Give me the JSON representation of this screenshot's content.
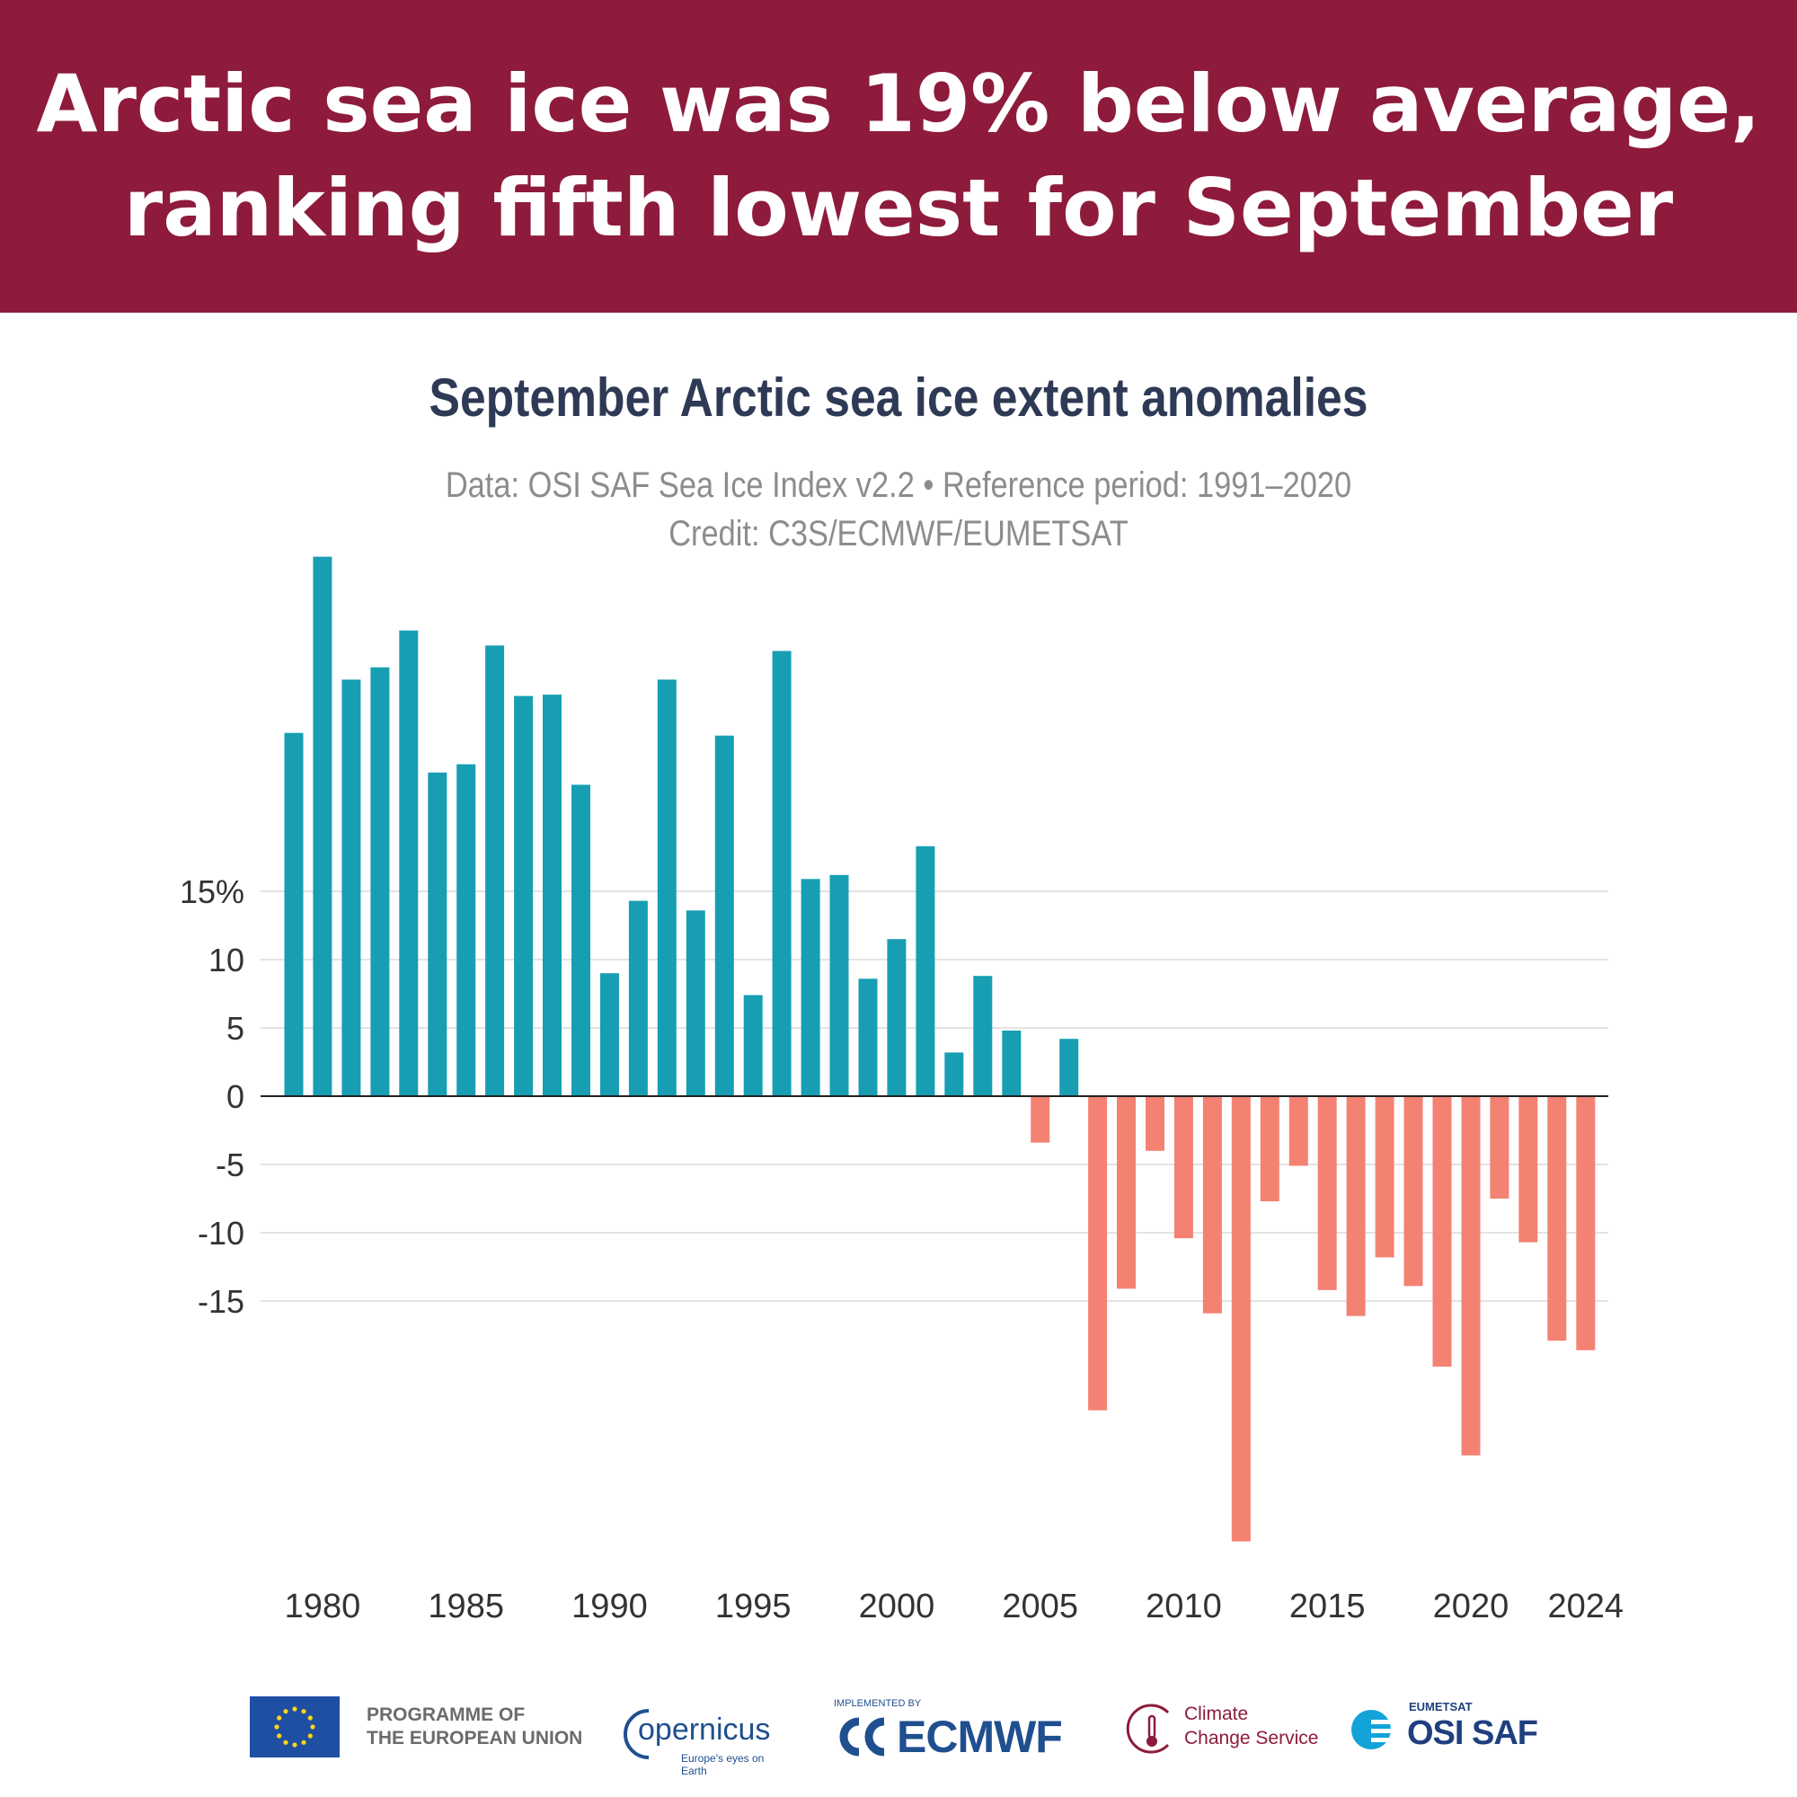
{
  "header": {
    "line1": "Arctic sea ice was 19% below average,",
    "line2": "ranking fifth lowest for September"
  },
  "chart_data": {
    "type": "bar",
    "title": "September Arctic sea ice extent anomalies",
    "subtitle": "Data: OSI SAF Sea Ice Index v2.2 • Reference period: 1991–2020",
    "credit": "Credit: C3S/ECMWF/EUMETSAT",
    "x": [
      1979,
      1980,
      1981,
      1982,
      1983,
      1984,
      1985,
      1986,
      1987,
      1988,
      1989,
      1990,
      1991,
      1992,
      1993,
      1994,
      1995,
      1996,
      1997,
      1998,
      1999,
      2000,
      2001,
      2002,
      2003,
      2004,
      2005,
      2006,
      2007,
      2008,
      2009,
      2010,
      2011,
      2012,
      2013,
      2014,
      2015,
      2016,
      2017,
      2018,
      2019,
      2020,
      2021,
      2022,
      2023,
      2024
    ],
    "values": [
      26.6,
      39.5,
      30.5,
      31.4,
      34.1,
      23.7,
      24.3,
      33.0,
      29.3,
      29.4,
      22.8,
      9.0,
      14.3,
      30.5,
      13.6,
      26.4,
      7.4,
      32.6,
      15.9,
      16.2,
      8.6,
      11.5,
      18.3,
      3.2,
      8.8,
      4.8,
      -3.4,
      4.2,
      -23.0,
      -14.1,
      -4.0,
      -10.4,
      -15.9,
      -32.6,
      -7.7,
      -5.1,
      -14.2,
      -16.1,
      -11.8,
      -13.9,
      -19.8,
      -26.3,
      -7.5,
      -10.7,
      -17.9,
      -18.6
    ],
    "ylabel_ticks": [
      "15%",
      "10",
      "5",
      "0",
      "-5",
      "-10",
      "-15"
    ],
    "ytick_values": [
      15,
      10,
      5,
      0,
      -5,
      -10,
      -15
    ],
    "xtick_labels": [
      "1980",
      "1985",
      "1990",
      "1995",
      "2000",
      "2005",
      "2010",
      "2015",
      "2020",
      "2024"
    ],
    "xtick_values": [
      1980,
      1985,
      1990,
      1995,
      2000,
      2005,
      2010,
      2015,
      2020,
      2024
    ],
    "positive_color": "#179eb3",
    "negative_color": "#f48273",
    "ylim": [
      -32.6,
      39.5
    ],
    "grid": true
  },
  "logos": {
    "eu": "PROGRAMME OF",
    "eu2": "THE EUROPEAN UNION",
    "copernicus": "opernicus",
    "copernicus_tag": "Europe's eyes on Earth",
    "ecmwf_implemented": "IMPLEMENTED BY",
    "ecmwf": "ECMWF",
    "c3s1": "Climate",
    "c3s2": "Change Service",
    "osi_small": "EUMETSAT",
    "osi": "OSI SAF"
  }
}
